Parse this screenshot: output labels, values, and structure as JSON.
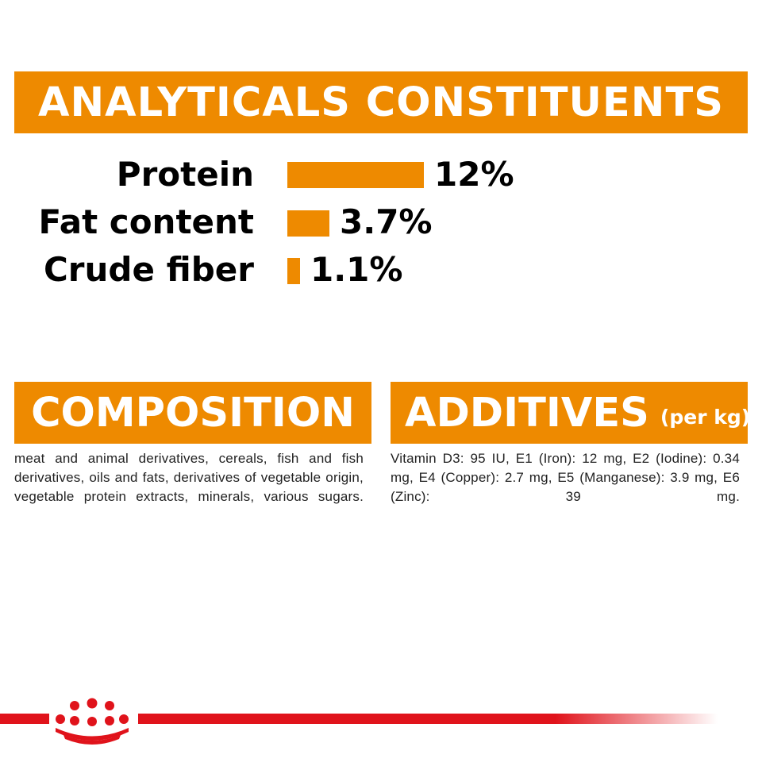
{
  "analytical": {
    "title": "ANALYTICALS CONSTITUENTS",
    "rows": [
      {
        "label": "Protein",
        "value": "12%",
        "percent": 12
      },
      {
        "label": "Fat content",
        "value": "3.7%",
        "percent": 3.7
      },
      {
        "label": "Crude fiber",
        "value": "1.1%",
        "percent": 1.1
      }
    ]
  },
  "composition": {
    "title": "COMPOSITION",
    "text": "meat and animal derivatives, cereals, fish and fish derivatives, oils and fats, derivatives of vegetable origin, vegetable protein extracts, minerals, various sugars."
  },
  "additives": {
    "title": "ADDITIVES",
    "unit": "(per kg)",
    "text": "Vitamin D3: 95 IU, E1 (Iron): 12 mg, E2 (Iodine): 0.34 mg, E4 (Copper): 2.7 mg, E5 (Manganese): 3.9 mg, E6 (Zinc): 39 mg."
  },
  "colors": {
    "accent": "#ee8a00",
    "brand_red": "#e0131b"
  },
  "brand": {
    "logo_icon": "crown-icon"
  }
}
